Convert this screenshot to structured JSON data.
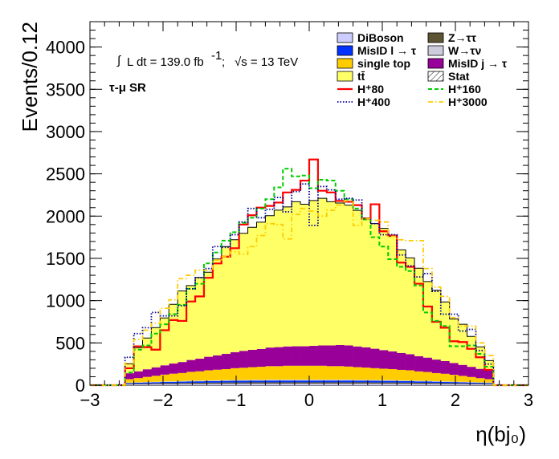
{
  "chart_data": {
    "type": "bar",
    "xlabel": "η(bj₀)",
    "ylabel": "Events/0.12",
    "xlim": [
      -3,
      3
    ],
    "ylim": [
      0,
      4300
    ],
    "x_ticks": [
      -3,
      -2,
      -1,
      0,
      1,
      2,
      3
    ],
    "x_tick_labels": [
      "−3",
      "−2",
      "−1",
      "0",
      "1",
      "2",
      "3"
    ],
    "y_ticks": [
      0,
      500,
      1000,
      1500,
      2000,
      2500,
      3000,
      3500,
      4000
    ],
    "y_tick_labels": [
      "0",
      "500",
      "1000",
      "1500",
      "2000",
      "2500",
      "3000",
      "3500",
      "4000"
    ],
    "bin_width": 0.12,
    "bin_centers": [
      -2.46,
      -2.34,
      -2.22,
      -2.1,
      -1.98,
      -1.86,
      -1.74,
      -1.62,
      -1.5,
      -1.38,
      -1.26,
      -1.14,
      -1.02,
      -0.9,
      -0.78,
      -0.66,
      -0.54,
      -0.42,
      -0.3,
      -0.18,
      -0.06,
      0.06,
      0.18,
      0.3,
      0.42,
      0.54,
      0.66,
      0.78,
      0.9,
      1.02,
      1.14,
      1.26,
      1.38,
      1.5,
      1.62,
      1.74,
      1.86,
      1.98,
      2.1,
      2.22,
      2.34,
      2.46
    ],
    "annotations": {
      "lumi_int": "∫",
      "lumi": "L dt = 139.0 fb",
      "lumi_sup": "-1",
      "lumi_sep": ";",
      "energy": "√s = 13 TeV",
      "region": "τ-μ SR"
    },
    "legend_placement": "top-right",
    "stack_series": [
      {
        "name": "DiBoson",
        "color": "#ccccff",
        "values": [
          8,
          9,
          10,
          11,
          12,
          12,
          13,
          14,
          14,
          15,
          15,
          16,
          16,
          16,
          17,
          17,
          17,
          17,
          17,
          17,
          17,
          17,
          17,
          17,
          17,
          17,
          17,
          17,
          16,
          16,
          16,
          15,
          15,
          14,
          14,
          13,
          12,
          12,
          11,
          10,
          9,
          8
        ]
      },
      {
        "name": "Z→ττ",
        "color": "#5c5432",
        "values": [
          8,
          9,
          10,
          11,
          12,
          12,
          13,
          14,
          14,
          15,
          15,
          16,
          16,
          16,
          17,
          17,
          17,
          17,
          17,
          17,
          17,
          17,
          17,
          17,
          17,
          17,
          17,
          17,
          16,
          16,
          16,
          15,
          15,
          14,
          14,
          13,
          12,
          12,
          11,
          10,
          9,
          8
        ]
      },
      {
        "name": "MisID l → τ",
        "color": "#0033ff",
        "values": [
          10,
          11,
          12,
          13,
          14,
          15,
          16,
          17,
          18,
          18,
          19,
          19,
          20,
          20,
          20,
          20,
          21,
          21,
          21,
          21,
          21,
          21,
          21,
          21,
          21,
          21,
          20,
          20,
          20,
          19,
          19,
          18,
          18,
          17,
          16,
          15,
          14,
          13,
          12,
          11,
          10,
          10
        ]
      },
      {
        "name": "W→τν",
        "color": "#ccccdd",
        "values": [
          5,
          5,
          6,
          6,
          7,
          7,
          7,
          8,
          8,
          8,
          9,
          9,
          9,
          9,
          9,
          9,
          10,
          10,
          10,
          10,
          10,
          10,
          10,
          10,
          10,
          10,
          9,
          9,
          9,
          9,
          9,
          8,
          8,
          8,
          7,
          7,
          7,
          6,
          6,
          6,
          5,
          5
        ]
      },
      {
        "name": "single top",
        "color": "#ffcc00",
        "values": [
          40,
          50,
          60,
          70,
          80,
          90,
          95,
          105,
          110,
          120,
          125,
          130,
          140,
          145,
          150,
          155,
          160,
          160,
          165,
          165,
          165,
          165,
          165,
          160,
          160,
          155,
          150,
          145,
          140,
          135,
          130,
          125,
          120,
          110,
          105,
          95,
          90,
          80,
          70,
          60,
          50,
          40
        ]
      },
      {
        "name": "MisID j → τ",
        "color": "#990099",
        "values": [
          70,
          80,
          90,
          100,
          110,
          120,
          130,
          140,
          150,
          160,
          170,
          180,
          190,
          200,
          205,
          210,
          220,
          225,
          228,
          230,
          230,
          235,
          240,
          245,
          250,
          250,
          245,
          240,
          230,
          220,
          210,
          200,
          190,
          180,
          170,
          160,
          150,
          140,
          130,
          120,
          110,
          100
        ]
      },
      {
        "name": "tt̄",
        "color": "#ffff66",
        "values": [
          110,
          280,
          370,
          470,
          560,
          700,
          840,
          880,
          960,
          1000,
          1140,
          1270,
          1330,
          1390,
          1450,
          1500,
          1560,
          1620,
          1650,
          1710,
          1680,
          1720,
          1740,
          1700,
          1680,
          1660,
          1610,
          1530,
          1480,
          1440,
          1360,
          1220,
          1140,
          1040,
          900,
          820,
          700,
          520,
          480,
          360,
          260,
          120
        ]
      }
    ],
    "stat_label": "Stat",
    "line_series": [
      {
        "name": "H⁺80",
        "color": "#ff0000",
        "style": "solid",
        "width": 2.2,
        "values": [
          200,
          460,
          450,
          420,
          650,
          770,
          760,
          990,
          1050,
          1270,
          1440,
          1520,
          1620,
          1900,
          2010,
          2100,
          2120,
          2160,
          2280,
          2310,
          2420,
          2670,
          2300,
          2280,
          2180,
          2170,
          2130,
          1970,
          2140,
          1820,
          1770,
          1450,
          1400,
          1200,
          930,
          750,
          680,
          520,
          510,
          430,
          330,
          180
        ]
      },
      {
        "name": "H⁺160",
        "color": "#00cc00",
        "style": "dashed",
        "width": 2,
        "values": [
          150,
          420,
          470,
          610,
          720,
          840,
          950,
          1140,
          1200,
          1440,
          1570,
          1710,
          1810,
          1920,
          1980,
          2090,
          2200,
          2340,
          2560,
          2470,
          2480,
          2330,
          2430,
          2420,
          2300,
          2200,
          2090,
          1960,
          1750,
          1640,
          1490,
          1400,
          1350,
          1180,
          860,
          760,
          700,
          460,
          460,
          470,
          370,
          220
        ]
      },
      {
        "name": "H⁺400",
        "color": "#000099",
        "style": "dotted",
        "width": 1.8,
        "values": [
          330,
          610,
          680,
          860,
          820,
          820,
          940,
          1140,
          1270,
          1380,
          1640,
          1630,
          1780,
          1930,
          2090,
          1980,
          2080,
          2220,
          2050,
          2290,
          2380,
          1890,
          2350,
          2310,
          2200,
          2210,
          2190,
          1970,
          1910,
          1780,
          1780,
          1540,
          1410,
          1280,
          1320,
          1110,
          840,
          840,
          640,
          660,
          410,
          250
        ]
      },
      {
        "name": "H⁺3000",
        "color": "#ffcc00",
        "style": "dashdot",
        "width": 1.8,
        "values": [
          260,
          540,
          650,
          730,
          910,
          1010,
          1260,
          1300,
          1360,
          1360,
          1480,
          1520,
          1580,
          1550,
          1640,
          1770,
          1910,
          1900,
          1730,
          2020,
          2090,
          2060,
          2000,
          2070,
          2130,
          2180,
          1890,
          1970,
          1950,
          1930,
          1760,
          1720,
          1710,
          1710,
          1380,
          1160,
          1050,
          800,
          700,
          700,
          500,
          350
        ]
      }
    ],
    "legend_layout": [
      [
        "DiBoson",
        "Z→ττ"
      ],
      [
        "MisID l → τ",
        "W→τν"
      ],
      [
        "single top",
        "MisID j → τ"
      ],
      [
        "tt̄",
        "Stat"
      ],
      [
        "H⁺80",
        "H⁺160"
      ],
      [
        "H⁺400",
        "H⁺3000"
      ]
    ]
  }
}
